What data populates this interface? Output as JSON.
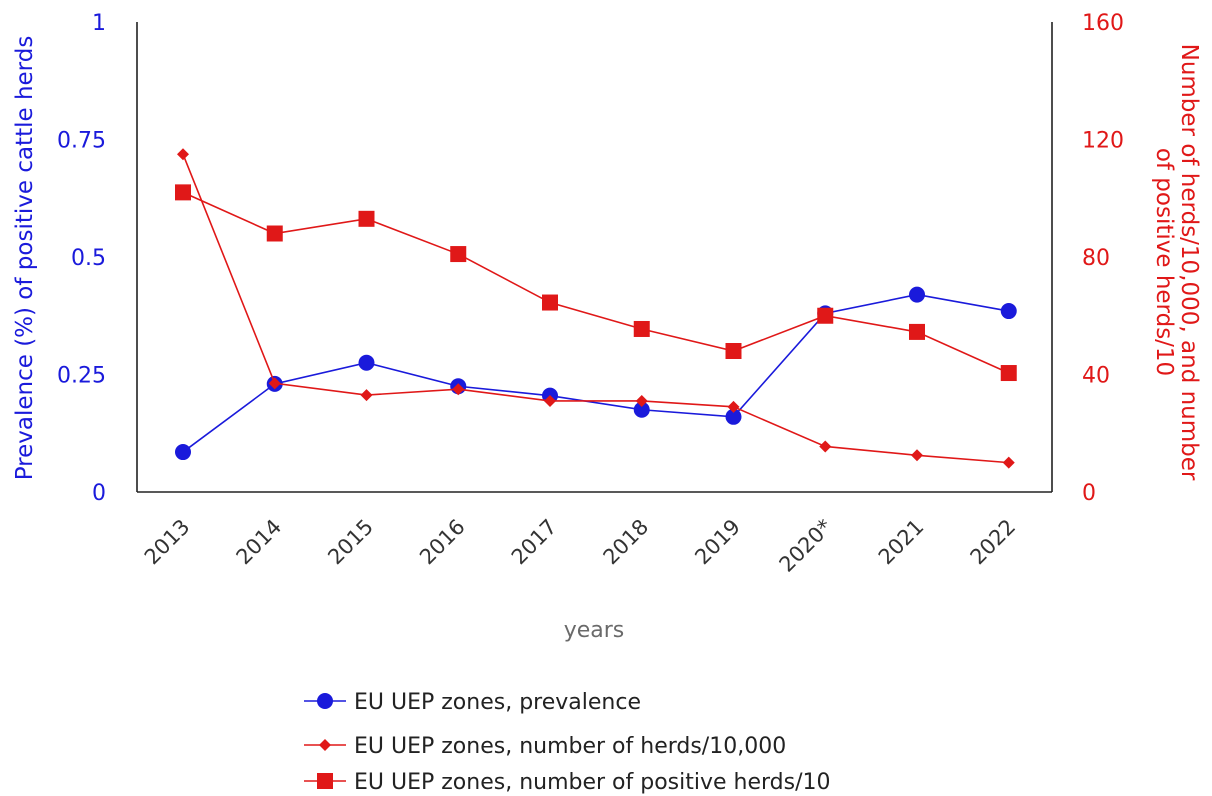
{
  "chart_data": {
    "type": "line",
    "categories": [
      "2013",
      "2014",
      "2015",
      "2016",
      "2017",
      "2018",
      "2019",
      "2020*",
      "2021",
      "2022"
    ],
    "xlabel": "years",
    "ylabel_left": "Prevalence (%) of positive cattle herds",
    "ylabel_right_line1": "Number of herds/10,000, and number",
    "ylabel_right_line2": "of positive herds/10",
    "ylim_left": [
      0,
      1
    ],
    "ylim_right": [
      0,
      160
    ],
    "yticks_left": [
      "0",
      "0.25",
      "0.5",
      "0.75",
      "1"
    ],
    "yticks_right": [
      "0",
      "40",
      "80",
      "120",
      "160"
    ],
    "grid": false,
    "legend_position": "bottom",
    "series": [
      {
        "name": "EU UEP zones, prevalence",
        "axis": "left",
        "marker": "circle",
        "color": "#1a1adb",
        "values": [
          0.085,
          0.23,
          0.275,
          0.225,
          0.205,
          0.175,
          0.16,
          0.38,
          0.42,
          0.385
        ]
      },
      {
        "name": "EU UEP zones, number of herds/10,000",
        "axis": "right",
        "marker": "diamond",
        "color": "#e01818",
        "values": [
          115,
          37,
          33,
          35,
          31,
          31,
          29,
          15.5,
          12.5,
          10
        ]
      },
      {
        "name": "EU UEP zones, number of positive herds/10",
        "axis": "right",
        "marker": "square",
        "color": "#e01818",
        "values": [
          102,
          88,
          93,
          81,
          64.5,
          55.5,
          48,
          60,
          54.5,
          40.5
        ]
      }
    ]
  }
}
